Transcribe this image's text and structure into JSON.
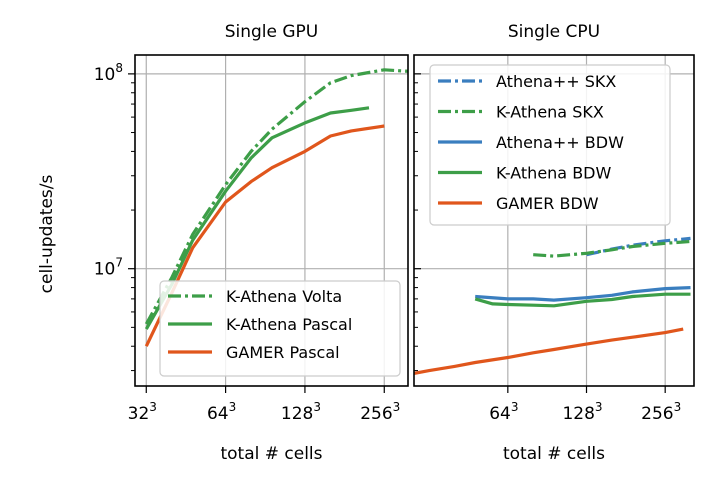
{
  "colors": {
    "blue": "#3a7ebf",
    "green": "#3d9e48",
    "orange": "#e0561c",
    "grid": "#b0b0b0",
    "legend_border": "#cccccc"
  },
  "ylabel": "cell-updates/s",
  "y_ticks": [
    {
      "value": 10000000,
      "base": "10",
      "exp": "7"
    },
    {
      "value": 100000000,
      "base": "10",
      "exp": "8"
    }
  ],
  "chart_data": [
    {
      "type": "line",
      "title": "Single GPU",
      "xlabel": "total # cells",
      "ylabel": "cell-updates/s",
      "xscale": "log2",
      "yscale": "log10",
      "xlim": [
        29,
        315
      ],
      "ylim": [
        2500000,
        125000000
      ],
      "grid": true,
      "legend_position": "lower-right",
      "x_ticks": [
        {
          "value": 32,
          "base": "32",
          "exp": "3"
        },
        {
          "value": 64,
          "base": "64",
          "exp": "3"
        },
        {
          "value": 128,
          "base": "128",
          "exp": "3"
        },
        {
          "value": 256,
          "base": "256",
          "exp": "3"
        }
      ],
      "series": [
        {
          "name": "K-Athena Volta",
          "color": "green",
          "style": "dashdot",
          "x": [
            32,
            40,
            48,
            64,
            80,
            96,
            128,
            160,
            192,
            256,
            320
          ],
          "y": [
            5200000,
            9000000,
            15000000,
            27000000,
            40000000,
            52000000,
            72000000,
            90000000,
            98000000,
            105000000,
            103000000
          ]
        },
        {
          "name": "K-Athena Pascal",
          "color": "green",
          "style": "solid",
          "x": [
            32,
            40,
            48,
            64,
            80,
            96,
            128,
            160,
            192,
            224
          ],
          "y": [
            4900000,
            8300000,
            14000000,
            25000000,
            37000000,
            47000000,
            56000000,
            63000000,
            65000000,
            67000000
          ]
        },
        {
          "name": "GAMER Pascal",
          "color": "orange",
          "style": "solid",
          "x": [
            32,
            40,
            48,
            64,
            80,
            96,
            128,
            160,
            192,
            256
          ],
          "y": [
            4000000,
            7500000,
            12800000,
            22000000,
            28000000,
            33000000,
            40000000,
            48000000,
            51000000,
            54000000
          ]
        }
      ]
    },
    {
      "type": "line",
      "title": "Single CPU",
      "xlabel": "total # cells",
      "xscale": "log2",
      "yscale": "log10",
      "xlim": [
        28,
        330
      ],
      "ylim": [
        2500000,
        125000000
      ],
      "grid": true,
      "legend_position": "upper-left",
      "x_ticks": [
        {
          "value": 64,
          "base": "64",
          "exp": "3"
        },
        {
          "value": 128,
          "base": "128",
          "exp": "3"
        },
        {
          "value": 256,
          "base": "256",
          "exp": "3"
        }
      ],
      "series": [
        {
          "name": "Athena++ SKX",
          "color": "blue",
          "style": "dashdot",
          "x": [
            128,
            160,
            192,
            256,
            320
          ],
          "y": [
            11800000,
            12600000,
            13200000,
            13900000,
            14300000
          ]
        },
        {
          "name": "K-Athena SKX",
          "color": "green",
          "style": "dashdot",
          "x": [
            80,
            96,
            128,
            160,
            192,
            256,
            320
          ],
          "y": [
            11800000,
            11600000,
            12000000,
            12500000,
            13000000,
            13500000,
            13800000
          ]
        },
        {
          "name": "Athena++ BDW",
          "color": "blue",
          "style": "solid",
          "x": [
            48,
            64,
            80,
            96,
            128,
            160,
            192,
            256,
            320
          ],
          "y": [
            7200000,
            7000000,
            7000000,
            6900000,
            7100000,
            7300000,
            7600000,
            7900000,
            8000000
          ]
        },
        {
          "name": "K-Athena BDW",
          "color": "green",
          "style": "solid",
          "x": [
            48,
            56,
            64,
            80,
            96,
            128,
            160,
            192,
            256,
            320
          ],
          "y": [
            7000000,
            6600000,
            6550000,
            6500000,
            6450000,
            6800000,
            6950000,
            7200000,
            7400000,
            7400000
          ]
        },
        {
          "name": "GAMER BDW",
          "color": "orange",
          "style": "solid",
          "x": [
            28,
            32,
            40,
            48,
            64,
            80,
            96,
            128,
            160,
            192,
            256,
            300
          ],
          "y": [
            2900000,
            3000000,
            3150000,
            3300000,
            3500000,
            3700000,
            3850000,
            4100000,
            4300000,
            4450000,
            4700000,
            4900000
          ]
        }
      ]
    }
  ]
}
